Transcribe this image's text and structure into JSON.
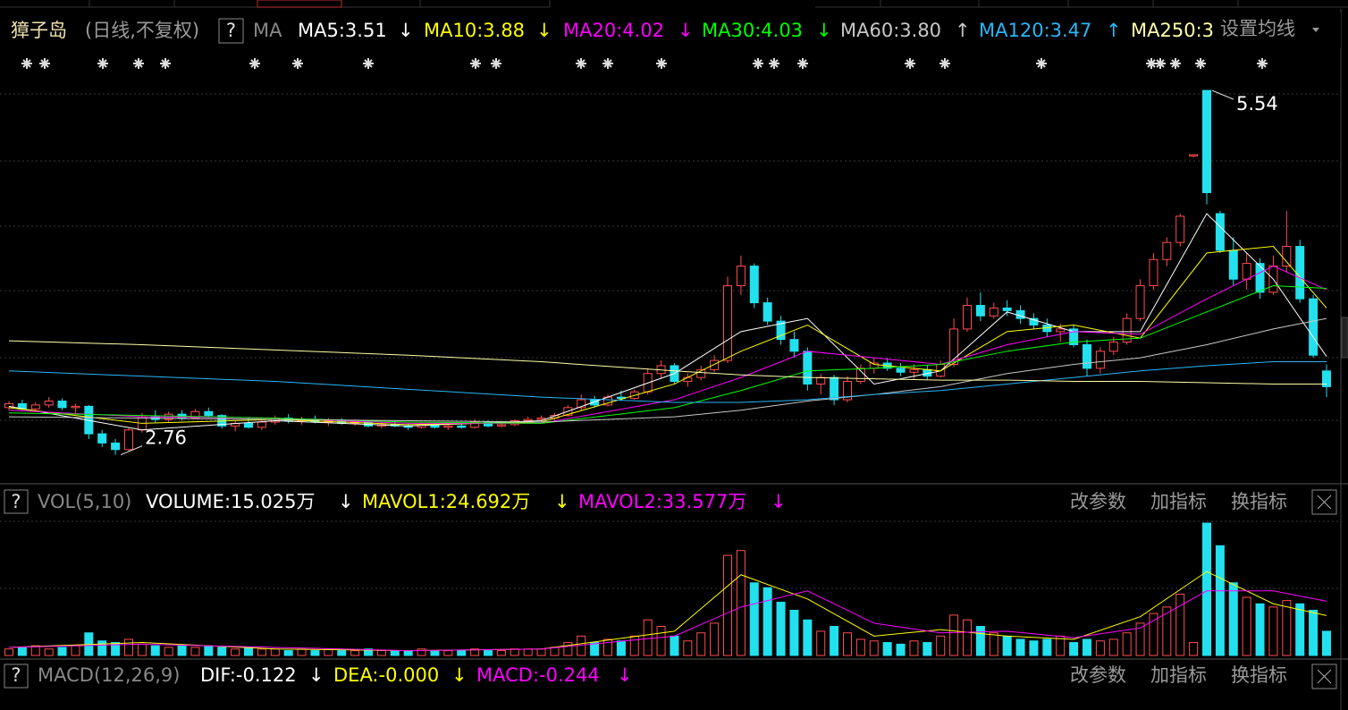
{
  "header": {
    "stock_name": "獐子岛",
    "period": "(日线,不复权)",
    "help": "?",
    "ma_title": "MA",
    "settings": "设置均线"
  },
  "chart_data": {
    "type": "candlestick",
    "ylim": [
      2.58,
      5.65
    ],
    "ohlc": [
      [
        3.12,
        3.17,
        3.1,
        3.15
      ],
      [
        3.15,
        3.18,
        3.1,
        3.11
      ],
      [
        3.11,
        3.16,
        3.09,
        3.14
      ],
      [
        3.14,
        3.2,
        3.12,
        3.17
      ],
      [
        3.17,
        3.19,
        3.1,
        3.12
      ],
      [
        3.12,
        3.15,
        3.08,
        3.13
      ],
      [
        3.13,
        3.14,
        2.88,
        2.92
      ],
      [
        2.92,
        2.95,
        2.82,
        2.85
      ],
      [
        2.85,
        2.88,
        2.76,
        2.8
      ],
      [
        2.8,
        2.97,
        2.79,
        2.95
      ],
      [
        2.95,
        3.08,
        2.93,
        3.05
      ],
      [
        3.05,
        3.1,
        3.0,
        3.03
      ],
      [
        3.03,
        3.09,
        3.01,
        3.07
      ],
      [
        3.07,
        3.1,
        3.02,
        3.04
      ],
      [
        3.04,
        3.11,
        3.03,
        3.09
      ],
      [
        3.09,
        3.12,
        3.04,
        3.06
      ],
      [
        3.06,
        3.07,
        2.96,
        2.98
      ],
      [
        2.98,
        3.02,
        2.94,
        3.0
      ],
      [
        3.0,
        3.05,
        2.96,
        2.97
      ],
      [
        2.97,
        3.03,
        2.95,
        3.01
      ],
      [
        3.01,
        3.06,
        2.99,
        3.04
      ],
      [
        3.04,
        3.07,
        3.0,
        3.02
      ],
      [
        3.02,
        3.05,
        2.99,
        3.03
      ],
      [
        3.03,
        3.06,
        3.0,
        3.01
      ],
      [
        3.01,
        3.04,
        2.98,
        3.02
      ],
      [
        3.02,
        3.04,
        2.99,
        3.0
      ],
      [
        3.0,
        3.03,
        2.98,
        3.01
      ],
      [
        3.01,
        3.02,
        2.97,
        2.98
      ],
      [
        2.98,
        3.01,
        2.96,
        2.99
      ],
      [
        2.99,
        3.02,
        2.97,
        2.98
      ],
      [
        2.98,
        3.0,
        2.95,
        2.97
      ],
      [
        2.97,
        3.01,
        2.96,
        2.99
      ],
      [
        2.99,
        3.0,
        2.96,
        2.97
      ],
      [
        2.97,
        2.99,
        2.95,
        2.98
      ],
      [
        2.98,
        3.0,
        2.96,
        2.97
      ],
      [
        2.97,
        3.03,
        2.96,
        3.01
      ],
      [
        3.01,
        3.02,
        2.97,
        2.98
      ],
      [
        2.98,
        3.01,
        2.97,
        2.99
      ],
      [
        2.99,
        3.03,
        2.98,
        3.02
      ],
      [
        3.02,
        3.05,
        3.0,
        3.03
      ],
      [
        3.03,
        3.06,
        3.01,
        3.04
      ],
      [
        3.04,
        3.08,
        3.02,
        3.06
      ],
      [
        3.06,
        3.14,
        3.05,
        3.12
      ],
      [
        3.12,
        3.22,
        3.1,
        3.18
      ],
      [
        3.18,
        3.21,
        3.12,
        3.14
      ],
      [
        3.14,
        3.22,
        3.13,
        3.2
      ],
      [
        3.2,
        3.25,
        3.17,
        3.19
      ],
      [
        3.19,
        3.26,
        3.18,
        3.24
      ],
      [
        3.24,
        3.42,
        3.22,
        3.38
      ],
      [
        3.38,
        3.48,
        3.34,
        3.44
      ],
      [
        3.44,
        3.46,
        3.3,
        3.32
      ],
      [
        3.32,
        3.38,
        3.28,
        3.35
      ],
      [
        3.35,
        3.44,
        3.33,
        3.41
      ],
      [
        3.41,
        3.52,
        3.39,
        3.48
      ],
      [
        3.48,
        4.12,
        3.46,
        4.05
      ],
      [
        4.05,
        4.28,
        3.98,
        4.2
      ],
      [
        4.2,
        4.22,
        3.88,
        3.92
      ],
      [
        3.92,
        3.96,
        3.75,
        3.78
      ],
      [
        3.78,
        3.82,
        3.6,
        3.64
      ],
      [
        3.64,
        3.7,
        3.5,
        3.55
      ],
      [
        3.55,
        3.58,
        3.25,
        3.3
      ],
      [
        3.3,
        3.38,
        3.22,
        3.35
      ],
      [
        3.35,
        3.37,
        3.14,
        3.18
      ],
      [
        3.18,
        3.36,
        3.16,
        3.32
      ],
      [
        3.32,
        3.45,
        3.3,
        3.42
      ],
      [
        3.42,
        3.5,
        3.38,
        3.46
      ],
      [
        3.46,
        3.5,
        3.4,
        3.42
      ],
      [
        3.42,
        3.46,
        3.36,
        3.39
      ],
      [
        3.39,
        3.45,
        3.34,
        3.41
      ],
      [
        3.41,
        3.44,
        3.33,
        3.36
      ],
      [
        3.36,
        3.48,
        3.35,
        3.45
      ],
      [
        3.45,
        3.8,
        3.43,
        3.72
      ],
      [
        3.72,
        3.96,
        3.7,
        3.9
      ],
      [
        3.9,
        4.0,
        3.78,
        3.82
      ],
      [
        3.82,
        3.92,
        3.8,
        3.88
      ],
      [
        3.88,
        3.94,
        3.82,
        3.86
      ],
      [
        3.86,
        3.9,
        3.76,
        3.8
      ],
      [
        3.8,
        3.84,
        3.72,
        3.75
      ],
      [
        3.75,
        3.8,
        3.66,
        3.7
      ],
      [
        3.7,
        3.76,
        3.62,
        3.72
      ],
      [
        3.72,
        3.75,
        3.58,
        3.6
      ],
      [
        3.6,
        3.64,
        3.36,
        3.42
      ],
      [
        3.42,
        3.58,
        3.38,
        3.55
      ],
      [
        3.55,
        3.66,
        3.52,
        3.62
      ],
      [
        3.62,
        3.84,
        3.6,
        3.8
      ],
      [
        3.8,
        4.1,
        3.78,
        4.05
      ],
      [
        4.05,
        4.3,
        4.02,
        4.25
      ],
      [
        4.25,
        4.42,
        4.2,
        4.38
      ],
      [
        4.38,
        4.6,
        4.35,
        4.58
      ],
      [
        5.04,
        5.05,
        5.03,
        5.05
      ],
      [
        5.54,
        5.54,
        4.67,
        4.76
      ],
      [
        4.6,
        4.62,
        4.3,
        4.32
      ],
      [
        4.32,
        4.42,
        4.05,
        4.1
      ],
      [
        4.1,
        4.3,
        4.02,
        4.22
      ],
      [
        4.22,
        4.26,
        3.95,
        4.0
      ],
      [
        4.0,
        4.28,
        3.98,
        4.2
      ],
      [
        4.2,
        4.62,
        4.15,
        4.35
      ],
      [
        4.35,
        4.4,
        3.92,
        3.95
      ],
      [
        3.95,
        3.98,
        3.5,
        3.52
      ],
      [
        3.4,
        3.45,
        3.2,
        3.28
      ]
    ],
    "ma_lines": [
      {
        "label": "MA5:3.51",
        "arrow": "↓",
        "color": "#ffffff",
        "x": [
          0,
          10,
          20,
          30,
          40,
          50,
          55,
          60,
          65,
          70,
          75,
          80,
          85,
          90,
          95,
          99
        ],
        "values": [
          3.13,
          2.95,
          3.02,
          2.98,
          3.02,
          3.38,
          3.7,
          3.8,
          3.3,
          3.4,
          3.85,
          3.7,
          3.7,
          4.6,
          4.1,
          3.51
        ]
      },
      {
        "label": "MA10:3.88",
        "arrow": "↓",
        "color": "#ffff00",
        "x": [
          0,
          10,
          20,
          30,
          40,
          50,
          55,
          60,
          65,
          70,
          75,
          80,
          85,
          90,
          95,
          99
        ],
        "values": [
          3.12,
          3.0,
          3.03,
          2.99,
          3.01,
          3.3,
          3.55,
          3.75,
          3.45,
          3.4,
          3.7,
          3.75,
          3.65,
          4.3,
          4.35,
          3.88
        ]
      },
      {
        "label": "MA20:4.02",
        "arrow": "↓",
        "color": "#ff00ff",
        "x": [
          0,
          10,
          20,
          30,
          40,
          50,
          55,
          60,
          65,
          70,
          75,
          80,
          85,
          90,
          95,
          99
        ],
        "values": [
          3.1,
          3.05,
          3.04,
          3.0,
          3.0,
          3.18,
          3.35,
          3.55,
          3.5,
          3.45,
          3.6,
          3.7,
          3.68,
          3.95,
          4.2,
          4.02
        ]
      },
      {
        "label": "MA30:4.03",
        "arrow": "↓",
        "color": "#00ff00",
        "x": [
          0,
          10,
          20,
          30,
          40,
          50,
          55,
          60,
          65,
          70,
          75,
          80,
          85,
          90,
          95,
          99
        ],
        "values": [
          3.08,
          3.06,
          3.04,
          3.01,
          3.0,
          3.12,
          3.25,
          3.4,
          3.42,
          3.45,
          3.55,
          3.62,
          3.65,
          3.85,
          4.05,
          4.03
        ]
      },
      {
        "label": "MA60:3.80",
        "arrow": "↑",
        "color": "#c8c8c8",
        "x": [
          0,
          10,
          20,
          30,
          40,
          50,
          55,
          60,
          65,
          70,
          75,
          80,
          85,
          90,
          95,
          99
        ],
        "values": [
          3.05,
          3.04,
          3.03,
          3.02,
          3.01,
          3.05,
          3.1,
          3.17,
          3.22,
          3.28,
          3.38,
          3.45,
          3.5,
          3.6,
          3.72,
          3.8
        ]
      },
      {
        "label": "MA120:3.47",
        "arrow": "↑",
        "color": "#29b6f6",
        "x": [
          0,
          10,
          20,
          30,
          40,
          50,
          55,
          60,
          65,
          70,
          75,
          80,
          85,
          90,
          95,
          99
        ],
        "values": [
          3.4,
          3.36,
          3.32,
          3.26,
          3.2,
          3.16,
          3.16,
          3.18,
          3.22,
          3.25,
          3.3,
          3.35,
          3.4,
          3.44,
          3.47,
          3.47
        ]
      },
      {
        "label": "MA250:3",
        "color": "#ffffa8",
        "x": [
          0,
          10,
          20,
          30,
          40,
          50,
          55,
          60,
          65,
          70,
          75,
          80,
          85,
          90,
          95,
          99
        ],
        "values": [
          3.63,
          3.6,
          3.56,
          3.52,
          3.47,
          3.4,
          3.37,
          3.35,
          3.34,
          3.33,
          3.33,
          3.32,
          3.32,
          3.31,
          3.3,
          3.3
        ]
      }
    ]
  },
  "volume_panel": {
    "type": "bar",
    "help": "?",
    "title": "VOL(5,10)",
    "volume_label": "VOLUME:15.025万",
    "volume_arrow": "↓",
    "volume_color": "#ffffff",
    "ylim": [
      0,
      82
    ],
    "values": [
      4,
      5,
      6,
      4,
      5,
      6,
      14,
      9,
      8,
      10,
      7,
      6,
      5,
      6,
      5,
      6,
      5,
      4,
      5,
      4,
      4,
      3,
      4,
      3,
      4,
      3,
      3,
      4,
      3,
      3,
      3,
      4,
      3,
      3,
      3,
      4,
      3,
      3,
      4,
      4,
      4,
      5,
      8,
      12,
      8,
      10,
      9,
      12,
      22,
      18,
      12,
      9,
      14,
      20,
      62,
      65,
      45,
      42,
      33,
      28,
      22,
      15,
      18,
      14,
      10,
      9,
      8,
      7,
      9,
      8,
      12,
      25,
      22,
      18,
      14,
      12,
      10,
      9,
      10,
      12,
      8,
      10,
      9,
      10,
      14,
      20,
      26,
      30,
      38,
      8,
      82,
      68,
      45,
      36,
      32,
      30,
      34,
      32,
      28,
      15
    ],
    "mavol_lines": [
      {
        "label": "MAVOL1:24.692万",
        "arrow": "↓",
        "color": "#ffff00",
        "x": [
          0,
          10,
          20,
          30,
          40,
          50,
          55,
          60,
          65,
          70,
          75,
          80,
          85,
          90,
          95,
          99
        ],
        "values": [
          5,
          8,
          4,
          3,
          4,
          15,
          50,
          35,
          12,
          16,
          12,
          10,
          24,
          52,
          32,
          24.7
        ]
      },
      {
        "label": "MAVOL2:33.577万",
        "arrow": "↓",
        "color": "#ff00ff",
        "x": [
          0,
          10,
          20,
          30,
          40,
          50,
          55,
          60,
          65,
          70,
          75,
          80,
          85,
          90,
          95,
          99
        ],
        "values": [
          5,
          7,
          5,
          3,
          4,
          12,
          30,
          40,
          20,
          14,
          15,
          11,
          17,
          40,
          40,
          33.6
        ]
      }
    ],
    "buttons": [
      "改参数",
      "加指标",
      "换指标"
    ]
  },
  "macd_panel": {
    "help": "?",
    "title": "MACD(12,26,9)",
    "items": [
      {
        "label": "DIF:-0.122",
        "arrow": "↓",
        "color": "#ffffff"
      },
      {
        "label": "DEA:-0.000",
        "arrow": "↓",
        "color": "#ffff00"
      },
      {
        "label": "MACD:-0.244",
        "arrow": "↓",
        "color": "#ff00ff"
      }
    ],
    "buttons": [
      "改参数",
      "加指标",
      "换指标"
    ]
  }
}
